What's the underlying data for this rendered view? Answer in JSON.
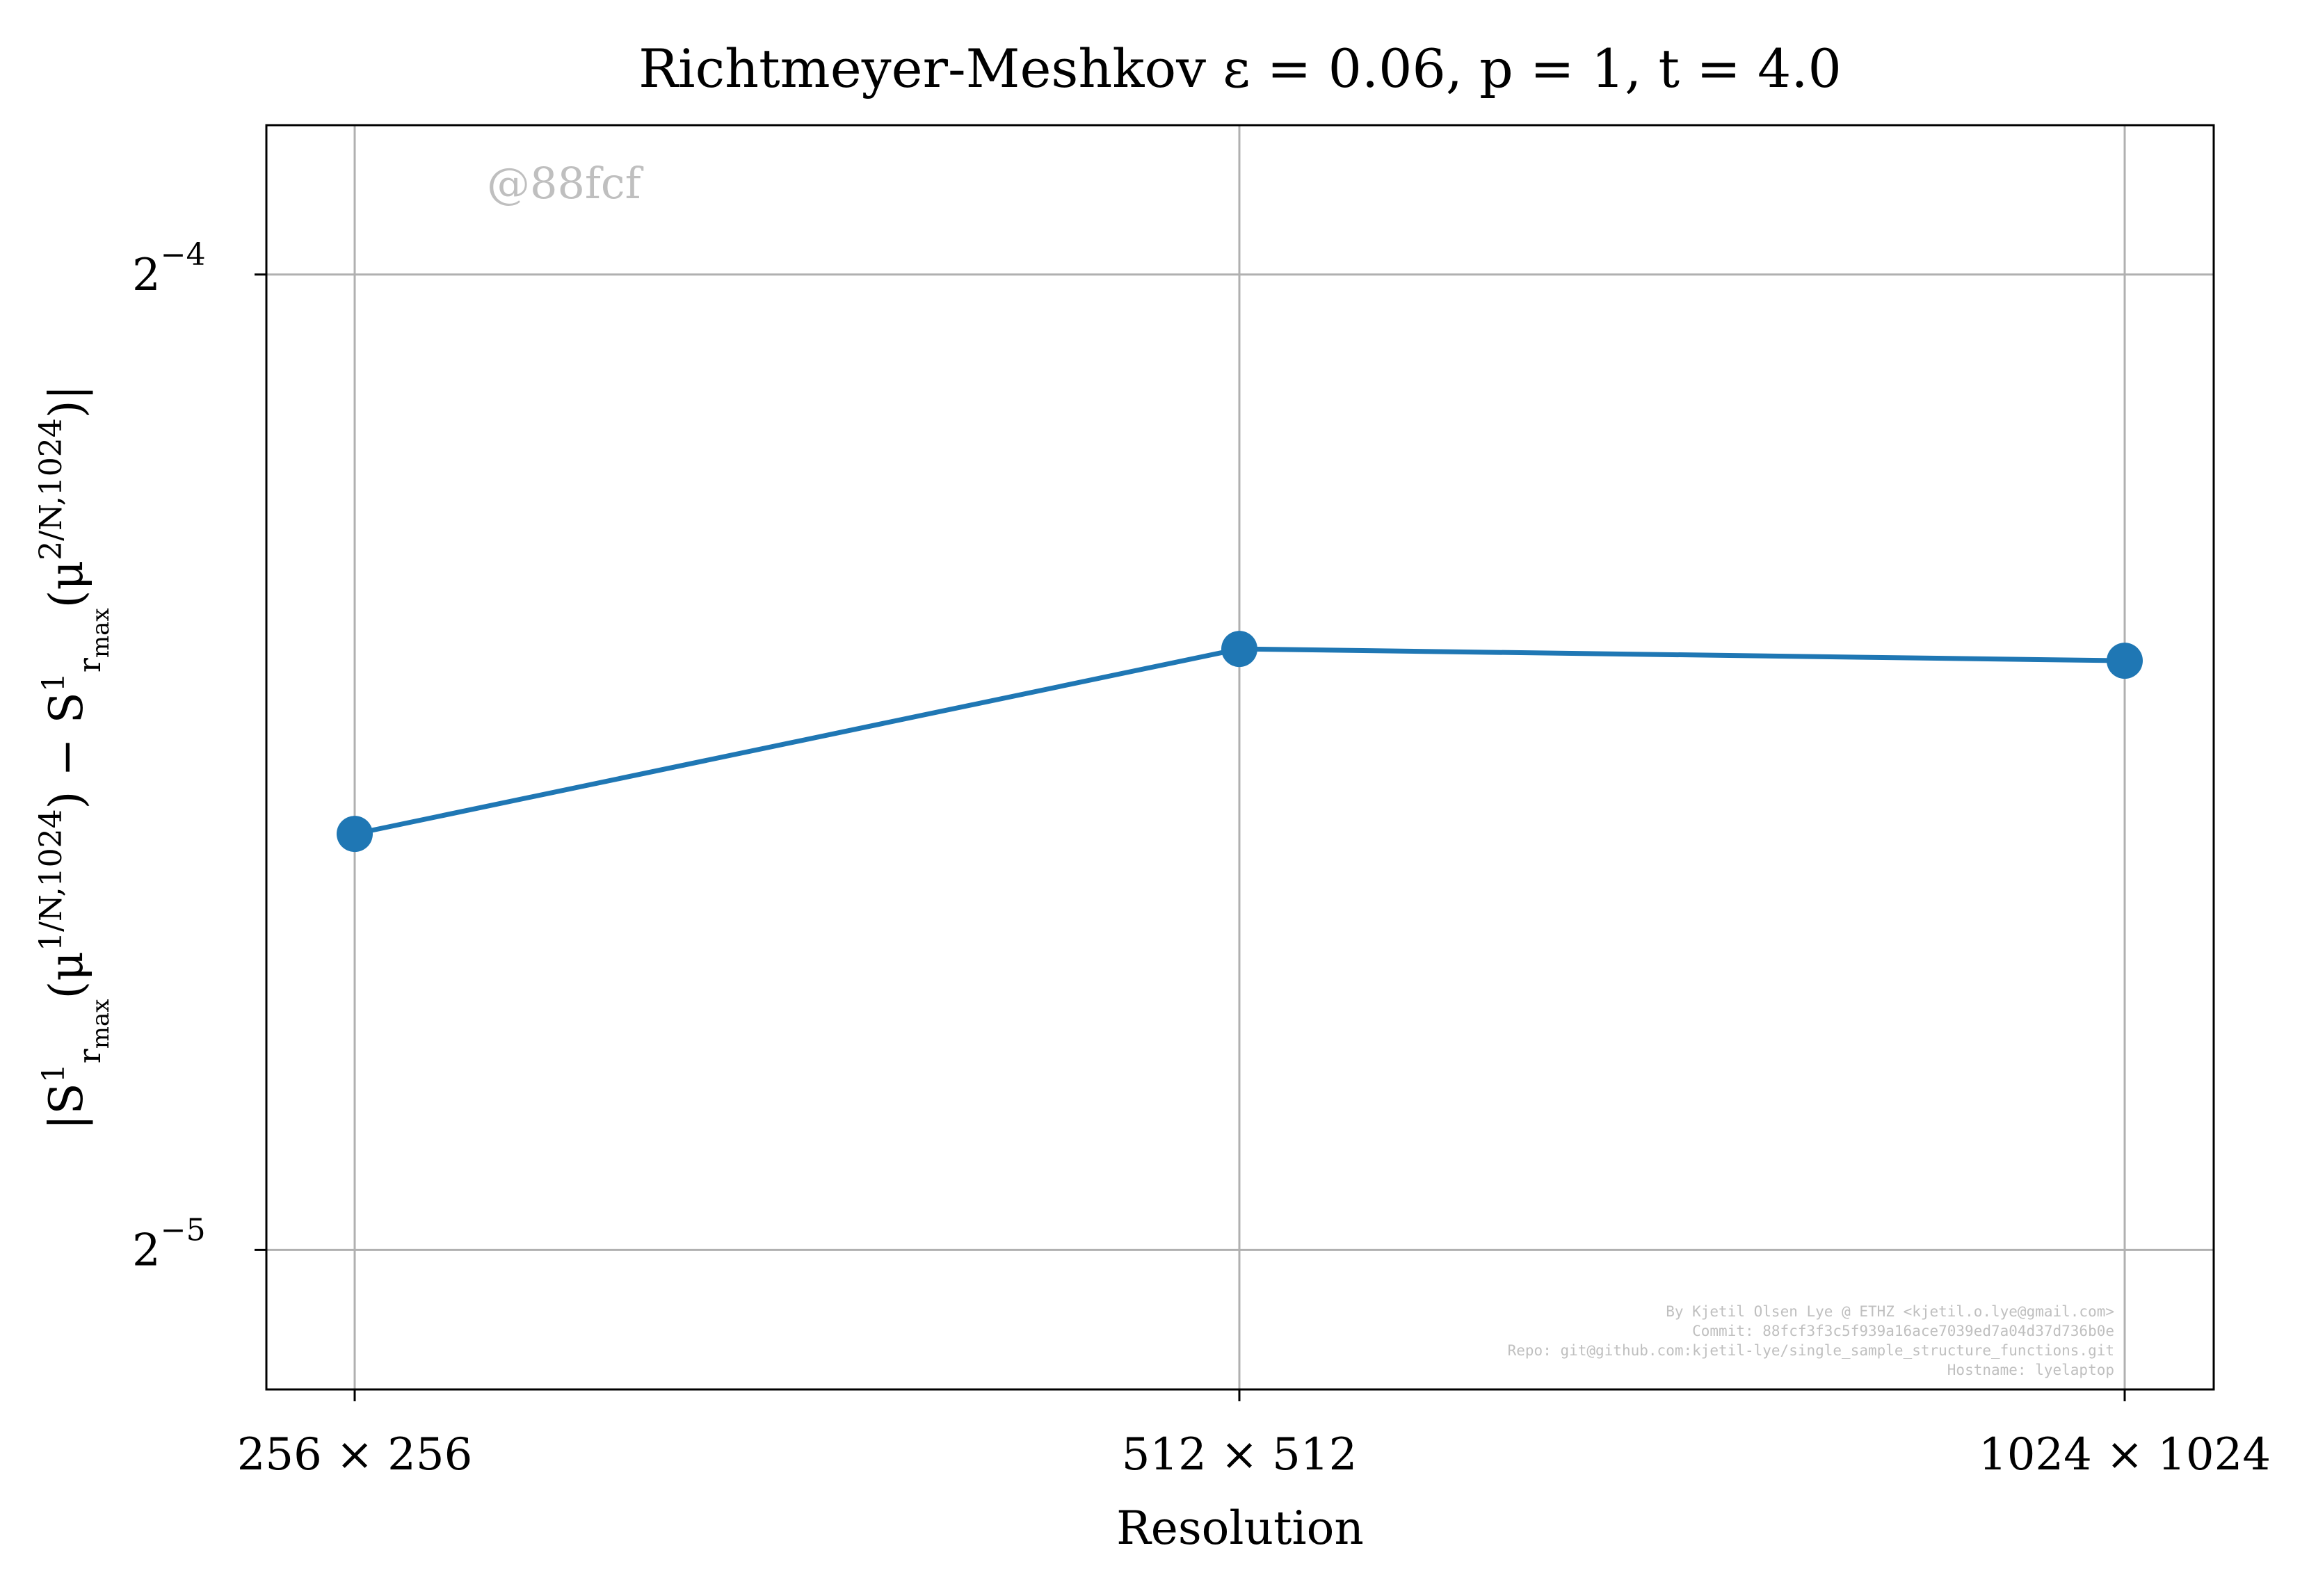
{
  "chart_data": {
    "type": "line",
    "title": "Richtmeyer-Meshkov ε = 0.06, p = 1, t = 4.0",
    "xlabel": "Resolution",
    "ylabel": "|S¹_{r_max}(μ^{1/N,1024}) − S¹_{r_max}(μ^{2/N,1024})|",
    "categories": [
      "256 × 256",
      "512 × 512",
      "1024 × 1024"
    ],
    "series": [
      {
        "values": [
          0.042,
          0.0479,
          0.0475
        ]
      }
    ],
    "y_scale": "log2",
    "ylim": [
      0.0283,
      0.0695
    ],
    "y_ticks": [
      {
        "value": 0.0625,
        "base": "2",
        "exp": "−4"
      },
      {
        "value": 0.03125,
        "base": "2",
        "exp": "−5"
      }
    ],
    "grid": true,
    "legend": false,
    "colors": {
      "series": "#1f77b4",
      "grid": "#b0b0b0",
      "watermark": "#bfbfbf"
    }
  },
  "watermark": "@88fcf",
  "credits": [
    "By Kjetil Olsen Lye @ ETHZ <kjetil.o.lye@gmail.com>",
    "Commit: 88fcf3f3c5f939a16ace7039ed7a04d37d736b0e",
    "Repo: git@github.com:kjetil-lye/single_sample_structure_functions.git",
    "Hostname: lyelaptop"
  ]
}
